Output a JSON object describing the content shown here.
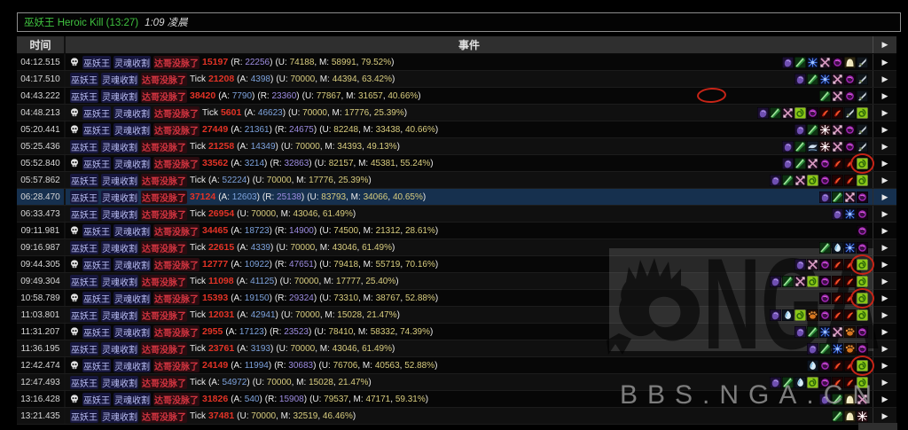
{
  "title": {
    "fight_link": "巫妖王 Heroic Kill (13:27)",
    "start_time": "1:09 凌晨"
  },
  "header": {
    "time": "时间",
    "event": "事件",
    "expand_icon": "▶"
  },
  "event_common": {
    "source": "巫妖王",
    "ability": "灵魂收割",
    "target": "达哥没脉了",
    "tick_label": "Tick",
    "absorbed_label": "(A: ",
    "resisted_label": "(R: ",
    "unmit_label": "(U: ",
    "mit_label": ", M: ",
    "close_paren": ")",
    "comma": ", "
  },
  "rows": [
    {
      "time": "04:12.515",
      "skull": true,
      "tick": false,
      "amount": "15197",
      "absorbed": null,
      "resisted": "22256",
      "unmitigated": "74188",
      "mitigated": "58991",
      "percent": "79.52%",
      "icons": [
        "ghost",
        "green",
        "spider",
        "arrows",
        "orb",
        "dome",
        "dagger"
      ],
      "circled": false,
      "highlighted": false
    },
    {
      "time": "04:17.510",
      "skull": false,
      "tick": true,
      "amount": "21208",
      "absorbed": "4398",
      "resisted": null,
      "unmitigated": "70000",
      "mitigated": "44394",
      "percent": "63.42%",
      "icons": [
        "ghost",
        "green",
        "spider",
        "arrows",
        "orb",
        "dagger"
      ],
      "circled": false,
      "highlighted": false
    },
    {
      "time": "04:43.222",
      "skull": false,
      "tick": false,
      "amount": "38420",
      "absorbed": "7790",
      "resisted": "23360",
      "unmitigated": "77867",
      "mitigated": "31657",
      "percent": "40.66%",
      "icons": [
        "green",
        "arrows",
        "orb",
        "dagger"
      ],
      "circled": false,
      "highlighted": false
    },
    {
      "time": "04:48.213",
      "skull": true,
      "tick": true,
      "amount": "5601",
      "absorbed": "46623",
      "resisted": null,
      "unmitigated": "70000",
      "mitigated": "17776",
      "percent": "25.39%",
      "icons": [
        "ghost",
        "green",
        "arrows",
        "lime",
        "orb",
        "flame",
        "flame",
        "dagger",
        "lime"
      ],
      "circled": false,
      "highlighted": false
    },
    {
      "time": "05:20.441",
      "skull": true,
      "tick": false,
      "amount": "27449",
      "absorbed": "21361",
      "resisted": "24675",
      "unmitigated": "82248",
      "mitigated": "33438",
      "percent": "40.66%",
      "icons": [
        "ghost",
        "green",
        "burst",
        "arrows",
        "orb",
        "dagger"
      ],
      "circled": false,
      "highlighted": false
    },
    {
      "time": "05:25.436",
      "skull": false,
      "tick": true,
      "amount": "21258",
      "absorbed": "14349",
      "resisted": null,
      "unmitigated": "70000",
      "mitigated": "34393",
      "percent": "49.13%",
      "icons": [
        "ghost",
        "green",
        "wave",
        "burst",
        "arrows",
        "orb",
        "dagger"
      ],
      "circled": false,
      "highlighted": false
    },
    {
      "time": "05:52.840",
      "skull": true,
      "tick": false,
      "amount": "33562",
      "absorbed": "3214",
      "resisted": "32863",
      "unmitigated": "82157",
      "mitigated": "45381",
      "percent": "55.24%",
      "icons": [
        "ghost",
        "green",
        "arrows",
        "orb",
        "flame",
        "flame",
        "lime"
      ],
      "circled": true,
      "highlighted": false
    },
    {
      "time": "05:57.862",
      "skull": false,
      "tick": true,
      "amount": null,
      "absorbed": "52224",
      "resisted": null,
      "unmitigated": "70000",
      "mitigated": "17776",
      "percent": "25.39%",
      "icons": [
        "ghost",
        "green",
        "arrows",
        "lime",
        "orb",
        "flame",
        "flame",
        "lime"
      ],
      "circled": false,
      "highlighted": false
    },
    {
      "time": "06:28.470",
      "skull": false,
      "tick": false,
      "amount": "37124",
      "absorbed": "12603",
      "resisted": "25138",
      "unmitigated": "83793",
      "mitigated": "34066",
      "percent": "40.65%",
      "icons": [
        "ghost",
        "green",
        "arrows",
        "orb"
      ],
      "circled": false,
      "highlighted": true
    },
    {
      "time": "06:33.473",
      "skull": false,
      "tick": true,
      "amount": "26954",
      "absorbed": null,
      "resisted": null,
      "unmitigated": "70000",
      "mitigated": "43046",
      "percent": "61.49%",
      "icons": [
        "ghost",
        "spider",
        "orb"
      ],
      "circled": false,
      "highlighted": false
    },
    {
      "time": "09:11.981",
      "skull": true,
      "tick": false,
      "amount": "34465",
      "absorbed": "18723",
      "resisted": "14900",
      "unmitigated": "74500",
      "mitigated": "21312",
      "percent": "28.61%",
      "icons": [
        "orb"
      ],
      "circled": false,
      "highlighted": false
    },
    {
      "time": "09:16.987",
      "skull": false,
      "tick": true,
      "amount": "22615",
      "absorbed": "4339",
      "resisted": null,
      "unmitigated": "70000",
      "mitigated": "43046",
      "percent": "61.49%",
      "icons": [
        "green",
        "drop",
        "spider",
        "orb"
      ],
      "circled": false,
      "highlighted": false
    },
    {
      "time": "09:44.305",
      "skull": true,
      "tick": false,
      "amount": "12777",
      "absorbed": "10922",
      "resisted": "47651",
      "unmitigated": "79418",
      "mitigated": "55719",
      "percent": "70.16%",
      "icons": [
        "ghost",
        "arrows",
        "orb",
        "flame",
        "flame",
        "lime"
      ],
      "circled": true,
      "highlighted": false
    },
    {
      "time": "09:49.304",
      "skull": false,
      "tick": true,
      "amount": "11098",
      "absorbed": "41125",
      "resisted": null,
      "unmitigated": "70000",
      "mitigated": "17777",
      "percent": "25.40%",
      "icons": [
        "ghost",
        "green",
        "arrows",
        "lime",
        "orb",
        "flame",
        "flame",
        "lime"
      ],
      "circled": false,
      "highlighted": false
    },
    {
      "time": "10:58.789",
      "skull": true,
      "tick": false,
      "amount": "15393",
      "absorbed": "19150",
      "resisted": "29324",
      "unmitigated": "73310",
      "mitigated": "38767",
      "percent": "52.88%",
      "icons": [
        "orb",
        "flame",
        "flame",
        "lime"
      ],
      "circled": true,
      "highlighted": false
    },
    {
      "time": "11:03.801",
      "skull": false,
      "tick": true,
      "amount": "12031",
      "absorbed": "42941",
      "resisted": null,
      "unmitigated": "70000",
      "mitigated": "15028",
      "percent": "21.47%",
      "icons": [
        "ghost",
        "drop",
        "lime",
        "paw",
        "orb",
        "flame",
        "flame",
        "lime"
      ],
      "circled": false,
      "highlighted": false
    },
    {
      "time": "11:31.207",
      "skull": true,
      "tick": false,
      "amount": "2955",
      "absorbed": "17123",
      "resisted": "23523",
      "unmitigated": "78410",
      "mitigated": "58332",
      "percent": "74.39%",
      "icons": [
        "ghost",
        "green",
        "spider",
        "arrows",
        "paw",
        "orb"
      ],
      "circled": false,
      "highlighted": false
    },
    {
      "time": "11:36.195",
      "skull": false,
      "tick": true,
      "amount": "23761",
      "absorbed": "3193",
      "resisted": null,
      "unmitigated": "70000",
      "mitigated": "43046",
      "percent": "61.49%",
      "icons": [
        "ghost",
        "green",
        "spider",
        "paw",
        "orb"
      ],
      "circled": false,
      "highlighted": false
    },
    {
      "time": "12:42.474",
      "skull": true,
      "tick": false,
      "amount": "24149",
      "absorbed": "11994",
      "resisted": "30683",
      "unmitigated": "76706",
      "mitigated": "40563",
      "percent": "52.88%",
      "icons": [
        "drop",
        "orb",
        "flame",
        "flame",
        "lime"
      ],
      "circled": true,
      "highlighted": false
    },
    {
      "time": "12:47.493",
      "skull": false,
      "tick": true,
      "amount": null,
      "absorbed": "54972",
      "resisted": null,
      "unmitigated": "70000",
      "mitigated": "15028",
      "percent": "21.47%",
      "icons": [
        "ghost",
        "green",
        "drop",
        "lime",
        "orb",
        "flame",
        "flame",
        "lime"
      ],
      "circled": false,
      "highlighted": false
    },
    {
      "time": "13:16.428",
      "skull": true,
      "tick": false,
      "amount": "31826",
      "absorbed": "540",
      "resisted": "15908",
      "unmitigated": "79537",
      "mitigated": "47171",
      "percent": "59.31%",
      "icons": [
        "ghost",
        "green",
        "dome",
        "arrows"
      ],
      "circled": false,
      "highlighted": false
    },
    {
      "time": "13:21.435",
      "skull": false,
      "tick": true,
      "amount": "37481",
      "absorbed": null,
      "resisted": null,
      "unmitigated": "70000",
      "mitigated": "32519",
      "percent": "46.46%",
      "icons": [
        "green",
        "dome",
        "burst"
      ],
      "circled": false,
      "highlighted": false
    }
  ],
  "watermark": {
    "site_text": "BBS.NGA.CN",
    "logo_text": "NGA"
  },
  "colors": {
    "fight_title_green": "#3fc13f",
    "link_blue": "#b9bdf2",
    "target_red": "#d23440",
    "damage_red": "#e23326",
    "absorbed_blue": "#7da2dc",
    "resisted_purple": "#9d8ce0",
    "value_khaki": "#d9cd7f",
    "highlight_row_blue": "#16304e",
    "annotation_red": "#c62417",
    "header_gray": "#2f2f2f"
  }
}
